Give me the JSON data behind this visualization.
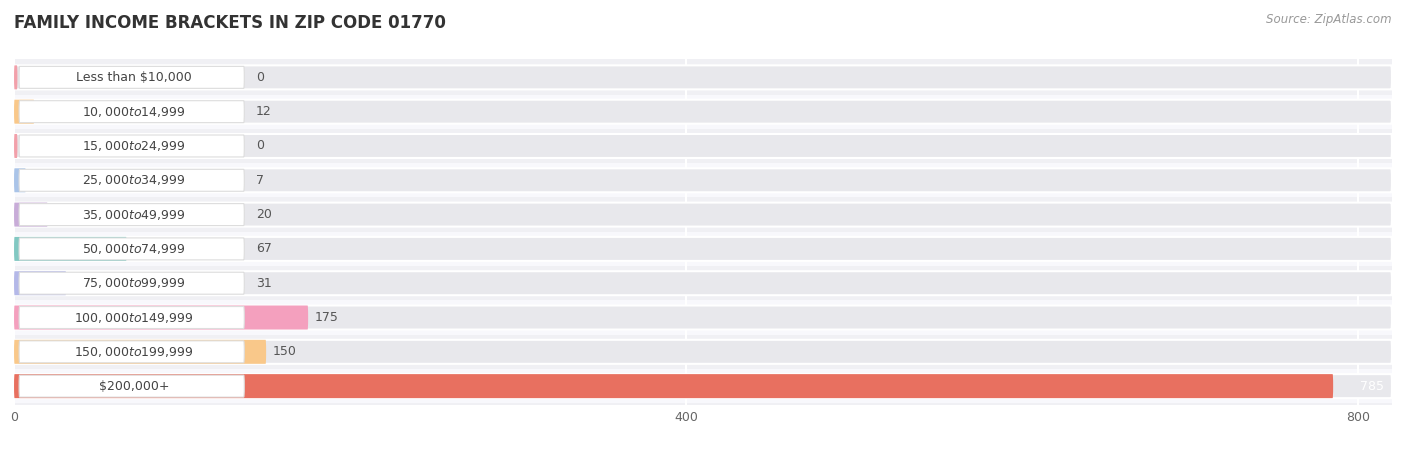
{
  "title": "FAMILY INCOME BRACKETS IN ZIP CODE 01770",
  "source": "Source: ZipAtlas.com",
  "categories": [
    "Less than $10,000",
    "$10,000 to $14,999",
    "$15,000 to $24,999",
    "$25,000 to $34,999",
    "$35,000 to $49,999",
    "$50,000 to $74,999",
    "$75,000 to $99,999",
    "$100,000 to $149,999",
    "$150,000 to $199,999",
    "$200,000+"
  ],
  "values": [
    0,
    12,
    0,
    7,
    20,
    67,
    31,
    175,
    150,
    785
  ],
  "bar_colors": [
    "#f2a0aa",
    "#f9c88a",
    "#f2a0aa",
    "#aac4e8",
    "#c8acd8",
    "#82c8c2",
    "#b4b8e8",
    "#f4a0be",
    "#f9c88a",
    "#e87060"
  ],
  "bar_bg_color": "#e8e8ec",
  "row_bg_colors": [
    "#f0f0f4",
    "#f8f8fc"
  ],
  "xlim_max": 820,
  "xticks": [
    0,
    400,
    800
  ],
  "title_fontsize": 12,
  "source_fontsize": 8.5,
  "label_fontsize": 9,
  "value_fontsize": 9
}
